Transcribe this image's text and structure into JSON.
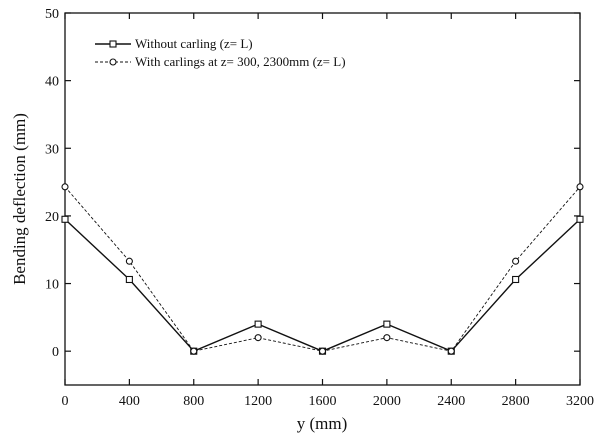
{
  "chart_data": {
    "type": "line",
    "title": "",
    "xlabel": "y (mm)",
    "ylabel": "Bending deflection (mm)",
    "xlim": [
      0,
      3200
    ],
    "ylim": [
      -5,
      50
    ],
    "x_ticks": [
      0,
      400,
      800,
      1200,
      1600,
      2000,
      2400,
      2800,
      3200
    ],
    "y_ticks": [
      0,
      10,
      20,
      30,
      40,
      50
    ],
    "legend_position": "top-left",
    "grid": false,
    "series": [
      {
        "name": "Without carling (z= L)",
        "style": "solid",
        "marker": "square",
        "x": [
          0,
          400,
          800,
          1200,
          1600,
          2000,
          2400,
          2800,
          3200
        ],
        "y": [
          19.5,
          10.6,
          0,
          4,
          0,
          4,
          0,
          10.6,
          19.5
        ]
      },
      {
        "name": "With carlings at z= 300, 2300mm (z= L)",
        "style": "dashed",
        "marker": "circle",
        "x": [
          0,
          400,
          800,
          1200,
          1600,
          2000,
          2400,
          2800,
          3200
        ],
        "y": [
          24.3,
          13.3,
          0,
          2,
          0,
          2,
          0,
          13.3,
          24.3
        ]
      }
    ]
  }
}
